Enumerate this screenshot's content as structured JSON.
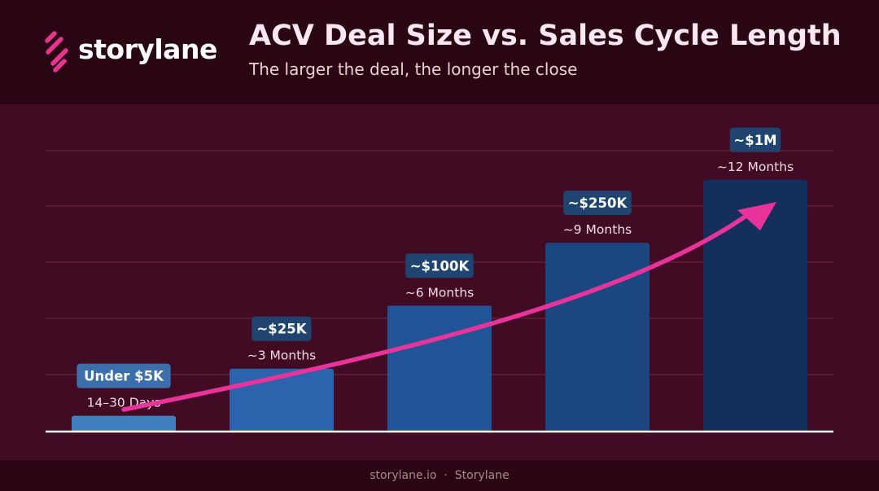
{
  "header": {
    "logo_text": "storylane",
    "logo_icon": "storylane-s-mark-icon",
    "title": "ACV Deal Size vs. Sales Cycle Length",
    "subtitle": "The larger the deal, the longer the close"
  },
  "footer": {
    "site": "storylane.io",
    "separator": "·",
    "brand": "Storylane"
  },
  "colors": {
    "brand_pink": "#e8348f",
    "arrow": "#e8349a",
    "bars": [
      "#3f80bd",
      "#2c63ad",
      "#215497",
      "#1c4680",
      "#152f5c"
    ]
  },
  "chart_data": {
    "type": "bar",
    "title": "ACV Deal Size vs. Sales Cycle Length",
    "subtitle": "The larger the deal, the longer the close",
    "categories": [
      "Under $5K",
      "~$25K",
      "~$100K",
      "~$250K",
      "~$1M"
    ],
    "series": [
      {
        "values": [
          0.75,
          3,
          6,
          9,
          12
        ],
        "labels": [
          "14–30 Days",
          "~3 Months",
          "~6 Months",
          "~9 Months",
          "~12 Months"
        ]
      }
    ],
    "ylim": [
      0,
      15.6
    ],
    "grid": true,
    "trend_arrow": true,
    "xlabel": "",
    "ylabel": ""
  }
}
